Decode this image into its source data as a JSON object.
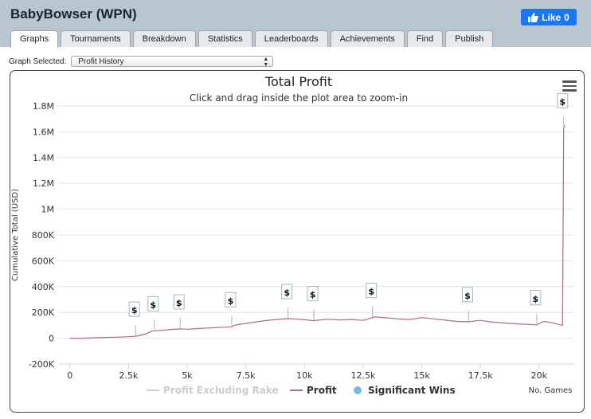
{
  "header": {
    "player_name": "BabyBowser (WPN)",
    "like_label": "Like",
    "like_count": "0"
  },
  "tabs": [
    "Graphs",
    "Tournaments",
    "Breakdown",
    "Statistics",
    "Leaderboards",
    "Achievements",
    "Find",
    "Publish"
  ],
  "graph_select": {
    "label": "Graph Selected:",
    "value": "Profit History"
  },
  "colors": {
    "profit_line": "#b06a7a",
    "marker_point": "#7cb5ec",
    "hidden_series": "#cccccc",
    "tab_bar": "#b9c5cf",
    "like_button": "#1877f2"
  },
  "chart_data": {
    "type": "line",
    "title": "Total Profit",
    "subtitle": "Click and drag inside the plot area to zoom-in",
    "xlabel": "No. Games",
    "ylabel": "Cumulative Total (USD)",
    "xlim": [
      -500,
      21500
    ],
    "ylim": [
      -200000,
      1800000
    ],
    "x_ticks": [
      0,
      2500,
      5000,
      7500,
      10000,
      12500,
      15000,
      17500,
      20000
    ],
    "x_tick_labels": [
      "0",
      "2.5k",
      "5k",
      "7.5k",
      "10k",
      "12.5k",
      "15k",
      "17.5k",
      "20k"
    ],
    "y_ticks": [
      -200000,
      0,
      200000,
      400000,
      600000,
      800000,
      1000000,
      1200000,
      1400000,
      1600000,
      1800000
    ],
    "y_tick_labels": [
      "-200K",
      "0",
      "200K",
      "400K",
      "600K",
      "800K",
      "1M",
      "1.2M",
      "1.4M",
      "1.6M",
      "1.8M"
    ],
    "series": [
      {
        "name": "Profit",
        "x": [
          0,
          500,
          1000,
          1500,
          2000,
          2500,
          2800,
          3000,
          3300,
          3500,
          3700,
          4000,
          4300,
          4700,
          5000,
          5500,
          6000,
          6500,
          6900,
          7000,
          7500,
          8000,
          8500,
          9000,
          9300,
          9600,
          10000,
          10400,
          10600,
          11000,
          11500,
          12000,
          12500,
          13000,
          13500,
          14000,
          14500,
          15000,
          15500,
          16000,
          16500,
          17000,
          17500,
          18000,
          18500,
          19000,
          19500,
          19900,
          20200,
          20500,
          20800,
          21000,
          21050,
          21100
        ],
        "values": [
          0,
          0,
          3000,
          6000,
          8000,
          12000,
          15000,
          22000,
          38000,
          55000,
          58000,
          62000,
          68000,
          72000,
          70000,
          75000,
          80000,
          85000,
          88000,
          100000,
          115000,
          128000,
          140000,
          148000,
          152000,
          150000,
          143000,
          136000,
          140000,
          147000,
          142000,
          145000,
          138000,
          165000,
          158000,
          150000,
          145000,
          160000,
          150000,
          140000,
          130000,
          128000,
          138000,
          125000,
          118000,
          112000,
          108000,
          104000,
          130000,
          122000,
          108000,
          100000,
          1630000,
          1650000
        ]
      },
      {
        "name": "Profit Excluding Rake",
        "visible": false
      }
    ],
    "significant_wins": [
      {
        "x": 2800,
        "y": 15000,
        "label": "$"
      },
      {
        "x": 3600,
        "y": 57000,
        "label": "$"
      },
      {
        "x": 4700,
        "y": 72000,
        "label": "$"
      },
      {
        "x": 6900,
        "y": 88000,
        "label": "$"
      },
      {
        "x": 9300,
        "y": 152000,
        "label": "$"
      },
      {
        "x": 10400,
        "y": 136000,
        "label": "$"
      },
      {
        "x": 12900,
        "y": 160000,
        "label": "$"
      },
      {
        "x": 17000,
        "y": 128000,
        "label": "$"
      },
      {
        "x": 19900,
        "y": 104000,
        "label": "$"
      },
      {
        "x": 21050,
        "y": 1630000,
        "label": "$"
      }
    ],
    "legend": {
      "position": "bottom-center",
      "items": [
        "Profit Excluding Rake",
        "Profit",
        "Significant Wins"
      ]
    }
  }
}
